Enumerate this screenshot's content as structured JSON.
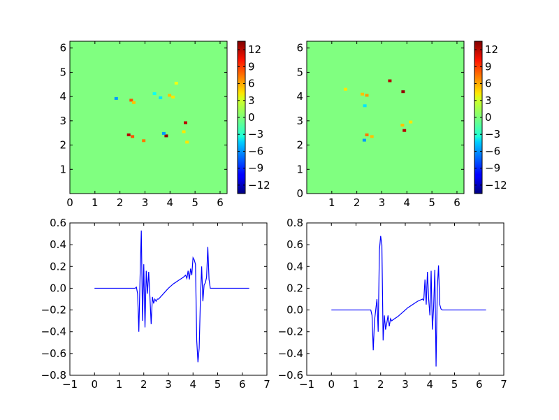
{
  "chart_data": [
    {
      "type": "heatmap",
      "panel": "top-left",
      "x": [
        0,
        6.28
      ],
      "y": [
        0,
        6.28
      ],
      "xlim": [
        0,
        6.28
      ],
      "ylim": [
        0,
        6.28
      ],
      "xticks": [
        0,
        1,
        2,
        3,
        4,
        5,
        6
      ],
      "yticks": [
        1,
        2,
        3,
        4,
        5,
        6
      ],
      "xtick_labels": [
        "0",
        "1",
        "2",
        "3",
        "4",
        "5",
        "6"
      ],
      "ytick_labels": [
        "1",
        "2",
        "3",
        "4",
        "5",
        "6"
      ],
      "background_value": 0,
      "colorbar": {
        "range": [
          -13.5,
          13.5
        ],
        "ticks": [
          -12,
          -9,
          -6,
          -3,
          0,
          3,
          6,
          9,
          12
        ],
        "tick_labels": [
          "−12",
          "−9",
          "−6",
          "−3",
          "0",
          "3",
          "6",
          "9",
          "12"
        ],
        "colormap": "jet"
      },
      "notable_spots": [
        {
          "x": 2.45,
          "y": 3.85,
          "value": 8
        },
        {
          "x": 2.55,
          "y": 3.75,
          "value": 5
        },
        {
          "x": 2.35,
          "y": 2.42,
          "value": 12
        },
        {
          "x": 2.5,
          "y": 2.35,
          "value": 8
        },
        {
          "x": 2.95,
          "y": 2.18,
          "value": 7
        },
        {
          "x": 3.85,
          "y": 2.38,
          "value": 13
        },
        {
          "x": 4.62,
          "y": 2.92,
          "value": 12
        },
        {
          "x": 3.98,
          "y": 4.05,
          "value": 5
        },
        {
          "x": 4.12,
          "y": 3.98,
          "value": 4
        },
        {
          "x": 1.85,
          "y": 3.92,
          "value": -6
        },
        {
          "x": 3.75,
          "y": 2.48,
          "value": -6
        },
        {
          "x": 3.38,
          "y": 4.12,
          "value": -3
        },
        {
          "x": 3.62,
          "y": 3.95,
          "value": -4
        },
        {
          "x": 4.55,
          "y": 2.55,
          "value": 4
        },
        {
          "x": 4.68,
          "y": 2.12,
          "value": 4
        },
        {
          "x": 4.25,
          "y": 4.55,
          "value": 3
        }
      ]
    },
    {
      "type": "heatmap",
      "panel": "top-right",
      "x": [
        0,
        6.28
      ],
      "y": [
        0,
        6.28
      ],
      "xlim": [
        0,
        6.28
      ],
      "ylim": [
        0,
        6.28
      ],
      "xticks": [
        1,
        2,
        3,
        4,
        5,
        6
      ],
      "yticks": [
        0,
        1,
        2,
        3,
        4,
        5,
        6
      ],
      "xtick_labels": [
        "1",
        "2",
        "3",
        "4",
        "5",
        "6"
      ],
      "ytick_labels": [
        "0",
        "1",
        "2",
        "3",
        "4",
        "5",
        "6"
      ],
      "background_value": 0,
      "colorbar": {
        "range": [
          -13.5,
          13.5
        ],
        "ticks": [
          -12,
          -9,
          -6,
          -3,
          0,
          3,
          6,
          9,
          12
        ],
        "tick_labels": [
          "−12",
          "−9",
          "−6",
          "−3",
          "0",
          "3",
          "6",
          "9",
          "12"
        ],
        "colormap": "jet"
      },
      "notable_spots": [
        {
          "x": 3.32,
          "y": 4.65,
          "value": 12
        },
        {
          "x": 3.85,
          "y": 4.2,
          "value": 13
        },
        {
          "x": 3.9,
          "y": 2.6,
          "value": 12
        },
        {
          "x": 3.82,
          "y": 2.82,
          "value": 5
        },
        {
          "x": 2.22,
          "y": 4.1,
          "value": 5
        },
        {
          "x": 2.4,
          "y": 4.05,
          "value": 6
        },
        {
          "x": 2.4,
          "y": 2.42,
          "value": 7
        },
        {
          "x": 2.6,
          "y": 2.35,
          "value": 5
        },
        {
          "x": 2.3,
          "y": 2.2,
          "value": -6
        },
        {
          "x": 2.32,
          "y": 3.62,
          "value": -4
        },
        {
          "x": 4.15,
          "y": 2.95,
          "value": 4
        },
        {
          "x": 1.55,
          "y": 4.3,
          "value": 4
        }
      ]
    },
    {
      "type": "line",
      "panel": "bottom-left",
      "xlim": [
        -1,
        7
      ],
      "ylim": [
        -0.8,
        0.6
      ],
      "xticks": [
        -1,
        0,
        1,
        2,
        3,
        4,
        5,
        6,
        7
      ],
      "yticks": [
        -0.8,
        -0.6,
        -0.4,
        -0.2,
        0.0,
        0.2,
        0.4,
        0.6
      ],
      "xtick_labels": [
        "−1",
        "0",
        "1",
        "2",
        "3",
        "4",
        "5",
        "6",
        "7"
      ],
      "ytick_labels": [
        "−0.8",
        "−0.6",
        "−0.4",
        "−0.2",
        "0.0",
        "0.2",
        "0.4",
        "0.6"
      ],
      "series": [
        {
          "color": "#0000ff",
          "x": [
            0,
            1.65,
            1.7,
            1.75,
            1.8,
            1.85,
            1.9,
            1.95,
            2.0,
            2.05,
            2.1,
            2.15,
            2.2,
            2.25,
            2.3,
            2.35,
            2.4,
            2.45,
            2.5,
            2.55,
            2.6,
            2.8,
            3.0,
            3.2,
            3.4,
            3.6,
            3.7,
            3.75,
            3.8,
            3.85,
            3.9,
            3.95,
            4.0,
            4.05,
            4.1,
            4.15,
            4.2,
            4.25,
            4.3,
            4.35,
            4.4,
            4.45,
            4.5,
            4.55,
            4.6,
            4.65,
            4.7,
            4.75,
            6.28
          ],
          "y": [
            0,
            0,
            0.01,
            -0.05,
            -0.4,
            0.1,
            0.53,
            -0.3,
            0.22,
            -0.36,
            0.16,
            -0.05,
            0.15,
            -0.08,
            -0.33,
            -0.08,
            -0.14,
            -0.1,
            -0.12,
            -0.1,
            -0.1,
            -0.05,
            0.0,
            0.04,
            0.07,
            0.1,
            0.12,
            0.09,
            0.16,
            0.08,
            0.18,
            0.12,
            0.28,
            0.26,
            0.22,
            -0.48,
            -0.68,
            -0.55,
            -0.1,
            0.2,
            -0.12,
            0.03,
            0.05,
            0.1,
            0.38,
            0.08,
            0.0,
            0.0,
            0.0
          ]
        }
      ]
    },
    {
      "type": "line",
      "panel": "bottom-right",
      "xlim": [
        -1,
        7
      ],
      "ylim": [
        -0.6,
        0.8
      ],
      "xticks": [
        -1,
        0,
        1,
        2,
        3,
        4,
        5,
        6,
        7
      ],
      "yticks": [
        -0.6,
        -0.4,
        -0.2,
        0.0,
        0.2,
        0.4,
        0.6,
        0.8
      ],
      "xtick_labels": [
        "−1",
        "0",
        "1",
        "2",
        "3",
        "4",
        "5",
        "6",
        "7"
      ],
      "ytick_labels": [
        "−0.6",
        "−0.4",
        "−0.2",
        "0.0",
        "0.2",
        "0.4",
        "0.6",
        "0.8"
      ],
      "series": [
        {
          "color": "#0000ff",
          "x": [
            0,
            1.55,
            1.6,
            1.65,
            1.7,
            1.75,
            1.8,
            1.85,
            1.9,
            1.95,
            2.0,
            2.05,
            2.1,
            2.15,
            2.2,
            2.25,
            2.3,
            2.35,
            2.4,
            2.45,
            2.5,
            2.7,
            2.9,
            3.1,
            3.3,
            3.5,
            3.7,
            3.75,
            3.8,
            3.85,
            3.9,
            3.95,
            4.0,
            4.05,
            4.1,
            4.15,
            4.2,
            4.25,
            4.3,
            4.35,
            4.4,
            4.45,
            4.5,
            4.55,
            4.6,
            6.28
          ],
          "y": [
            0,
            0,
            0.0,
            -0.05,
            -0.37,
            -0.1,
            0.0,
            0.1,
            -0.2,
            0.55,
            0.68,
            0.6,
            -0.28,
            -0.05,
            -0.18,
            -0.12,
            -0.05,
            -0.15,
            -0.08,
            -0.1,
            -0.09,
            -0.06,
            -0.02,
            0.02,
            0.05,
            0.08,
            0.1,
            0.09,
            0.28,
            0.05,
            0.35,
            0.1,
            -0.05,
            0.36,
            -0.18,
            0.02,
            0.37,
            -0.52,
            0.2,
            0.41,
            0.05,
            0.01,
            0.0,
            0.0,
            0.0,
            0.0
          ]
        }
      ]
    }
  ]
}
